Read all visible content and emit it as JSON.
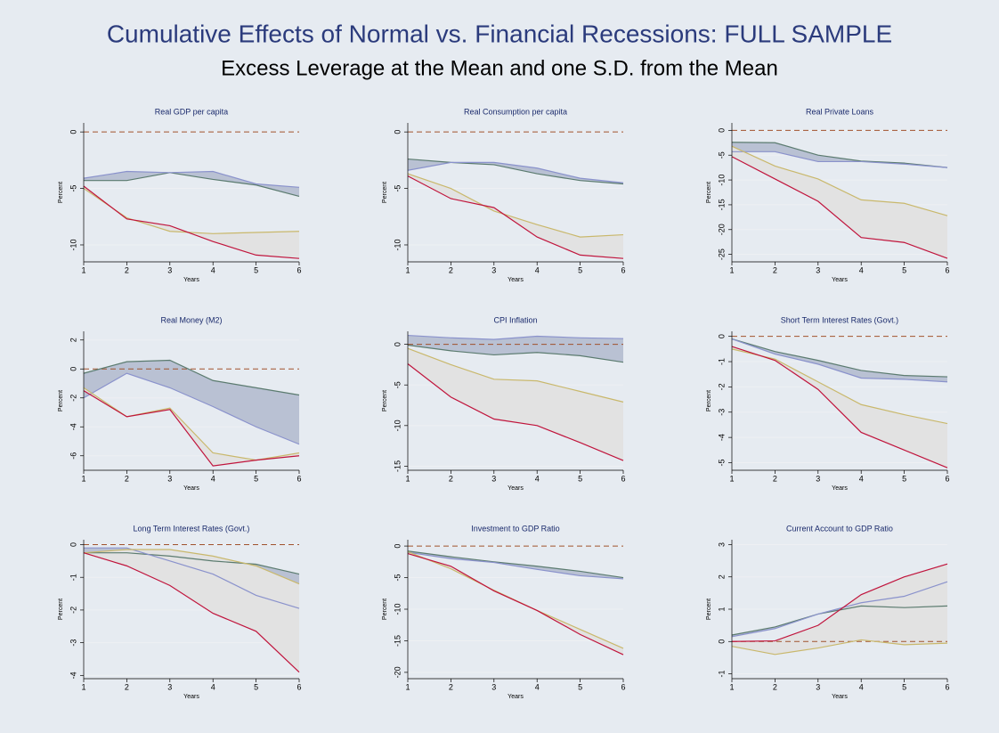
{
  "title": "Cumulative Effects of Normal vs. Financial Recessions: FULL SAMPLE",
  "subtitle": "Excess Leverage at the Mean and one S.D. from the Mean",
  "chart_data": [
    {
      "type": "line",
      "title": "Real GDP per capita",
      "xlabel": "Years",
      "ylabel": "Percent",
      "x": [
        1,
        2,
        3,
        4,
        5,
        6
      ],
      "xlim": [
        1,
        6
      ],
      "xticks": [
        1,
        2,
        3,
        4,
        5,
        6
      ],
      "ylim": [
        -11.5,
        0.8
      ],
      "yticks": [
        0,
        -5,
        -10
      ],
      "grid": true,
      "ref_line": {
        "value": 0,
        "color": "#a0522d",
        "dashed": true
      },
      "fills": [
        {
          "between": [
            0,
            1
          ],
          "color": "#b9c1d3"
        },
        {
          "between": [
            2,
            3
          ],
          "color": "#e2e2e2"
        }
      ],
      "series": [
        {
          "color": "#5b7b6f",
          "values": [
            -4.3,
            -4.3,
            -3.6,
            -4.2,
            -4.7,
            -5.7
          ]
        },
        {
          "color": "#8a92cc",
          "values": [
            -4.1,
            -3.5,
            -3.6,
            -3.5,
            -4.6,
            -4.9
          ]
        },
        {
          "color": "#c9b86c",
          "values": [
            -5.0,
            -7.6,
            -8.8,
            -9.0,
            -8.9,
            -8.8
          ]
        },
        {
          "color": "#c0143c",
          "values": [
            -4.8,
            -7.7,
            -8.3,
            -9.7,
            -10.9,
            -11.2
          ]
        }
      ]
    },
    {
      "type": "line",
      "title": "Real Consumption per capita",
      "xlabel": "Years",
      "ylabel": "Percent",
      "x": [
        1,
        2,
        3,
        4,
        5,
        6
      ],
      "xlim": [
        1,
        6
      ],
      "xticks": [
        1,
        2,
        3,
        4,
        5,
        6
      ],
      "ylim": [
        -11.5,
        0.8
      ],
      "yticks": [
        0,
        -5,
        -10
      ],
      "grid": true,
      "ref_line": {
        "value": 0,
        "color": "#a0522d",
        "dashed": true
      },
      "fills": [
        {
          "between": [
            0,
            1
          ],
          "color": "#b9c1d3"
        },
        {
          "between": [
            2,
            3
          ],
          "color": "#e2e2e2"
        }
      ],
      "series": [
        {
          "color": "#5b7b6f",
          "values": [
            -2.4,
            -2.7,
            -2.9,
            -3.7,
            -4.3,
            -4.6
          ]
        },
        {
          "color": "#8a92cc",
          "values": [
            -3.4,
            -2.7,
            -2.7,
            -3.2,
            -4.1,
            -4.5
          ]
        },
        {
          "color": "#c9b86c",
          "values": [
            -3.7,
            -5.0,
            -7.0,
            -8.2,
            -9.3,
            -9.1
          ]
        },
        {
          "color": "#c0143c",
          "values": [
            -3.9,
            -5.9,
            -6.7,
            -9.3,
            -10.9,
            -11.2
          ]
        }
      ]
    },
    {
      "type": "line",
      "title": "Real Private Loans",
      "xlabel": "Years",
      "ylabel": "Percent",
      "x": [
        1,
        2,
        3,
        4,
        5,
        6
      ],
      "xlim": [
        1,
        6
      ],
      "xticks": [
        1,
        2,
        3,
        4,
        5,
        6
      ],
      "ylim": [
        -26.5,
        1.5
      ],
      "yticks": [
        0,
        -5,
        -10,
        -15,
        -20,
        -25
      ],
      "grid": true,
      "ref_line": {
        "value": 0,
        "color": "#a0522d",
        "dashed": true
      },
      "fills": [
        {
          "between": [
            0,
            1
          ],
          "color": "#b9c1d3"
        },
        {
          "between": [
            2,
            3
          ],
          "color": "#e2e2e2"
        }
      ],
      "series": [
        {
          "color": "#5b7b6f",
          "values": [
            -2.4,
            -2.5,
            -5.0,
            -6.2,
            -6.6,
            -7.5
          ]
        },
        {
          "color": "#8a92cc",
          "values": [
            -4.3,
            -4.3,
            -6.3,
            -6.3,
            -6.8,
            -7.5
          ]
        },
        {
          "color": "#c9b86c",
          "values": [
            -3.2,
            -7.2,
            -9.8,
            -14.0,
            -14.7,
            -17.2
          ]
        },
        {
          "color": "#c0143c",
          "values": [
            -5.3,
            -9.8,
            -14.3,
            -21.6,
            -22.6,
            -25.8
          ]
        }
      ]
    },
    {
      "type": "line",
      "title": "Real Money (M2)",
      "xlabel": "Years",
      "ylabel": "Percent",
      "x": [
        1,
        2,
        3,
        4,
        5,
        6
      ],
      "xlim": [
        1,
        6
      ],
      "xticks": [
        1,
        2,
        3,
        4,
        5,
        6
      ],
      "ylim": [
        -7,
        2.6
      ],
      "yticks": [
        2,
        0,
        -2,
        -4,
        -6
      ],
      "grid": true,
      "ref_line": {
        "value": 0,
        "color": "#a0522d",
        "dashed": true
      },
      "fills": [
        {
          "between": [
            0,
            1
          ],
          "color": "#b9c1d3"
        },
        {
          "between": [
            2,
            3
          ],
          "color": "#e2e2e2"
        }
      ],
      "series": [
        {
          "color": "#5b7b6f",
          "values": [
            -0.3,
            0.5,
            0.6,
            -0.8,
            -1.3,
            -1.8
          ]
        },
        {
          "color": "#8a92cc",
          "values": [
            -2.0,
            -0.3,
            -1.3,
            -2.6,
            -4.0,
            -5.2
          ]
        },
        {
          "color": "#c9b86c",
          "values": [
            -1.3,
            -3.3,
            -2.7,
            -5.8,
            -6.3,
            -5.8
          ]
        },
        {
          "color": "#c0143c",
          "values": [
            -1.5,
            -3.3,
            -2.8,
            -6.7,
            -6.3,
            -6.0
          ]
        }
      ]
    },
    {
      "type": "line",
      "title": "CPI Inflation",
      "xlabel": "Years",
      "ylabel": "Percent",
      "x": [
        1,
        2,
        3,
        4,
        5,
        6
      ],
      "xlim": [
        1,
        6
      ],
      "xticks": [
        1,
        2,
        3,
        4,
        5,
        6
      ],
      "ylim": [
        -15.5,
        1.6
      ],
      "yticks": [
        0,
        -5,
        -10,
        -15
      ],
      "grid": true,
      "ref_line": {
        "value": 0,
        "color": "#a0522d",
        "dashed": true
      },
      "fills": [
        {
          "between": [
            0,
            1
          ],
          "color": "#b9c1d3"
        },
        {
          "between": [
            2,
            3
          ],
          "color": "#e2e2e2"
        }
      ],
      "series": [
        {
          "color": "#5b7b6f",
          "values": [
            -0.1,
            -0.8,
            -1.3,
            -1.0,
            -1.4,
            -2.2
          ]
        },
        {
          "color": "#8a92cc",
          "values": [
            1.1,
            0.8,
            0.6,
            1.0,
            0.8,
            0.7
          ]
        },
        {
          "color": "#c9b86c",
          "values": [
            -0.5,
            -2.5,
            -4.3,
            -4.5,
            -5.8,
            -7.1
          ]
        },
        {
          "color": "#c0143c",
          "values": [
            -2.4,
            -6.5,
            -9.2,
            -10.0,
            -12.1,
            -14.3
          ]
        }
      ]
    },
    {
      "type": "line",
      "title": "Short Term Interest Rates (Govt.)",
      "xlabel": "Years",
      "ylabel": "Percent",
      "x": [
        1,
        2,
        3,
        4,
        5,
        6
      ],
      "xlim": [
        1,
        6
      ],
      "xticks": [
        1,
        2,
        3,
        4,
        5,
        6
      ],
      "ylim": [
        -5.3,
        0.2
      ],
      "yticks": [
        0,
        -1,
        -2,
        -3,
        -4,
        -5
      ],
      "grid": true,
      "ref_line": {
        "value": 0,
        "color": "#a0522d",
        "dashed": true
      },
      "fills": [
        {
          "between": [
            0,
            1
          ],
          "color": "#b9c1d3"
        },
        {
          "between": [
            2,
            3
          ],
          "color": "#e2e2e2"
        }
      ],
      "series": [
        {
          "color": "#5b7b6f",
          "values": [
            -0.1,
            -0.6,
            -0.95,
            -1.35,
            -1.55,
            -1.6
          ]
        },
        {
          "color": "#8a92cc",
          "values": [
            -0.1,
            -0.7,
            -1.1,
            -1.65,
            -1.7,
            -1.8
          ]
        },
        {
          "color": "#c9b86c",
          "values": [
            -0.5,
            -0.9,
            -1.8,
            -2.7,
            -3.1,
            -3.45
          ]
        },
        {
          "color": "#c0143c",
          "values": [
            -0.4,
            -0.95,
            -2.1,
            -3.8,
            -4.5,
            -5.2
          ]
        }
      ]
    },
    {
      "type": "line",
      "title": "Long Term Interest Rates (Govt.)",
      "xlabel": "Years",
      "ylabel": "Percent",
      "x": [
        1,
        2,
        3,
        4,
        5,
        6
      ],
      "xlim": [
        1,
        6
      ],
      "xticks": [
        1,
        2,
        3,
        4,
        5,
        6
      ],
      "ylim": [
        -4.1,
        0.15
      ],
      "yticks": [
        0,
        -1,
        -2,
        -3,
        -4
      ],
      "grid": true,
      "ref_line": {
        "value": 0,
        "color": "#a0522d",
        "dashed": true
      },
      "fills": [
        {
          "between": [
            0,
            1
          ],
          "color": "#b9c1d3"
        },
        {
          "between": [
            2,
            3
          ],
          "color": "#e2e2e2"
        }
      ],
      "series": [
        {
          "color": "#5b7b6f",
          "values": [
            -0.25,
            -0.25,
            -0.35,
            -0.5,
            -0.6,
            -0.9
          ]
        },
        {
          "color": "#8a92cc",
          "values": [
            -0.1,
            -0.1,
            -0.5,
            -0.9,
            -1.55,
            -1.95
          ]
        },
        {
          "color": "#c9b86c",
          "values": [
            -0.25,
            -0.15,
            -0.15,
            -0.35,
            -0.65,
            -1.2
          ]
        },
        {
          "color": "#c0143c",
          "values": [
            -0.25,
            -0.65,
            -1.25,
            -2.1,
            -2.65,
            -3.9
          ]
        }
      ]
    },
    {
      "type": "line",
      "title": "Investment to GDP Ratio",
      "xlabel": "Years",
      "ylabel": "Percent",
      "x": [
        1,
        2,
        3,
        4,
        5,
        6
      ],
      "xlim": [
        1,
        6
      ],
      "xticks": [
        1,
        2,
        3,
        4,
        5,
        6
      ],
      "ylim": [
        -21,
        1
      ],
      "yticks": [
        0,
        -5,
        -10,
        -15,
        -20
      ],
      "grid": true,
      "ref_line": {
        "value": 0,
        "color": "#a0522d",
        "dashed": true
      },
      "fills": [
        {
          "between": [
            0,
            1
          ],
          "color": "#b9c1d3"
        },
        {
          "between": [
            2,
            3
          ],
          "color": "#e2e2e2"
        }
      ],
      "series": [
        {
          "color": "#5b7b6f",
          "values": [
            -0.8,
            -1.7,
            -2.5,
            -3.2,
            -4.0,
            -5.0
          ]
        },
        {
          "color": "#8a92cc",
          "values": [
            -1.0,
            -2.0,
            -2.6,
            -3.7,
            -4.7,
            -5.2
          ]
        },
        {
          "color": "#c9b86c",
          "values": [
            -0.9,
            -3.6,
            -7.0,
            -10.2,
            -13.2,
            -16.2
          ]
        },
        {
          "color": "#c0143c",
          "values": [
            -1.2,
            -3.2,
            -7.1,
            -10.2,
            -14.0,
            -17.2
          ]
        }
      ]
    },
    {
      "type": "line",
      "title": "Current Account to GDP Ratio",
      "xlabel": "Years",
      "ylabel": "Percent",
      "x": [
        1,
        2,
        3,
        4,
        5,
        6
      ],
      "xlim": [
        1,
        6
      ],
      "xticks": [
        1,
        2,
        3,
        4,
        5,
        6
      ],
      "ylim": [
        -1.15,
        3.15
      ],
      "yticks": [
        3,
        2,
        1,
        0,
        -1
      ],
      "grid": true,
      "ref_line": {
        "value": 0,
        "color": "#a0522d",
        "dashed": true
      },
      "fills": [
        {
          "between": [
            0,
            1
          ],
          "color": "#b9c1d3"
        },
        {
          "between": [
            2,
            3
          ],
          "color": "#e2e2e2"
        }
      ],
      "series": [
        {
          "color": "#5b7b6f",
          "values": [
            0.2,
            0.45,
            0.85,
            1.1,
            1.05,
            1.1
          ]
        },
        {
          "color": "#8a92cc",
          "values": [
            0.15,
            0.4,
            0.85,
            1.2,
            1.4,
            1.85
          ]
        },
        {
          "color": "#c9b86c",
          "values": [
            -0.15,
            -0.4,
            -0.2,
            0.05,
            -0.1,
            -0.05
          ]
        },
        {
          "color": "#c0143c",
          "values": [
            0,
            0.02,
            0.5,
            1.45,
            2.0,
            2.4
          ]
        }
      ]
    }
  ]
}
